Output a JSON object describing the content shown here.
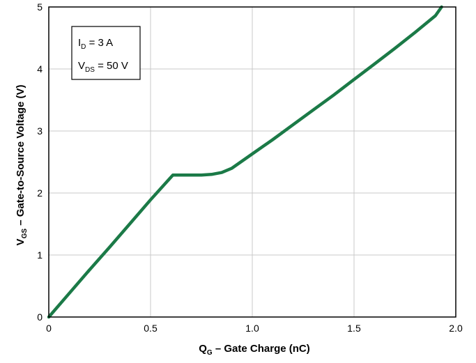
{
  "chart_data": {
    "type": "line",
    "x_axis": {
      "label_main": "Q",
      "label_sub": "G",
      "label_rest": " – Gate Charge (nC)",
      "range": [
        0,
        2.0
      ],
      "ticks": [
        0,
        0.5,
        1.0,
        1.5,
        2.0
      ],
      "tick_labels": [
        "0",
        "0.5",
        "1.0",
        "1.5",
        "2.0"
      ]
    },
    "y_axis": {
      "label_main": "V",
      "label_sub": "GS",
      "label_rest": " – Gate-to-Source Voltage (V)",
      "range": [
        0,
        5
      ],
      "ticks": [
        0,
        1,
        2,
        3,
        4,
        5
      ],
      "tick_labels": [
        "0",
        "1",
        "2",
        "3",
        "4",
        "5"
      ]
    },
    "grid": true,
    "legend_position": "top-left",
    "legend": {
      "line1_main": "I",
      "line1_sub": "D",
      "line1_rest": " = 3 A",
      "line2_main": "V",
      "line2_sub": "DS",
      "line2_rest": " = 50 V"
    },
    "series": [
      {
        "color": "#1b7a47",
        "points": [
          [
            0,
            0
          ],
          [
            0.1,
            0.38
          ],
          [
            0.2,
            0.76
          ],
          [
            0.3,
            1.13
          ],
          [
            0.4,
            1.51
          ],
          [
            0.5,
            1.89
          ],
          [
            0.61,
            2.29
          ],
          [
            0.65,
            2.29
          ],
          [
            0.7,
            2.29
          ],
          [
            0.75,
            2.29
          ],
          [
            0.8,
            2.3
          ],
          [
            0.85,
            2.33
          ],
          [
            0.9,
            2.4
          ],
          [
            1.0,
            2.63
          ],
          [
            1.1,
            2.86
          ],
          [
            1.2,
            3.1
          ],
          [
            1.3,
            3.34
          ],
          [
            1.4,
            3.58
          ],
          [
            1.5,
            3.83
          ],
          [
            1.6,
            4.08
          ],
          [
            1.7,
            4.33
          ],
          [
            1.8,
            4.59
          ],
          [
            1.9,
            4.86
          ],
          [
            1.93,
            5.0
          ]
        ]
      }
    ]
  }
}
